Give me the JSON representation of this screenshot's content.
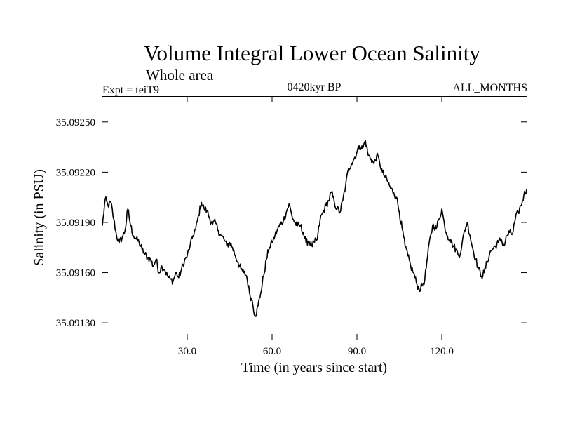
{
  "chart_data": {
    "type": "line",
    "title": "Volume Integral Lower Ocean Salinity",
    "subtitle": "Whole area",
    "experiment_label": "Expt = teiT9",
    "period_label": "0420kyr BP",
    "months_label": "ALL_MONTHS",
    "xlabel": "Time (in years since start)",
    "ylabel": "Salinity (in PSU)",
    "xlim": [
      0,
      150
    ],
    "ylim": [
      35.0912,
      35.09265
    ],
    "x_ticks": [
      30,
      60,
      90,
      120
    ],
    "x_tick_labels": [
      "30.0",
      "60.0",
      "90.0",
      "120.0"
    ],
    "y_ticks": [
      35.0913,
      35.0916,
      35.0919,
      35.0922,
      35.0925
    ],
    "y_tick_labels": [
      "35.09130",
      "35.09160",
      "35.09190",
      "35.09220",
      "35.09250"
    ],
    "grid": false,
    "series": [
      {
        "name": "Salinity",
        "color": "#000000",
        "x": [
          0,
          1,
          2,
          3,
          4,
          5,
          6,
          7,
          8,
          9,
          10,
          11,
          12,
          13,
          14,
          15,
          16,
          17,
          18,
          19,
          20,
          21,
          22,
          23,
          24,
          25,
          26,
          27,
          28,
          29,
          30,
          31,
          32,
          33,
          34,
          35,
          36,
          37,
          38,
          39,
          40,
          41,
          42,
          43,
          44,
          45,
          46,
          47,
          48,
          49,
          50,
          51,
          52,
          53,
          54,
          55,
          56,
          57,
          58,
          59,
          60,
          61,
          62,
          63,
          64,
          65,
          66,
          67,
          68,
          69,
          70,
          71,
          72,
          73,
          74,
          75,
          76,
          77,
          78,
          79,
          80,
          81,
          82,
          83,
          84,
          85,
          86,
          87,
          88,
          89,
          90,
          91,
          92,
          93,
          94,
          95,
          96,
          97,
          98,
          99,
          100,
          101,
          102,
          103,
          104,
          105,
          106,
          107,
          108,
          109,
          110,
          111,
          112,
          113,
          114,
          115,
          116,
          117,
          118,
          119,
          120,
          121,
          122,
          123,
          124,
          125,
          126,
          127,
          128,
          129,
          130,
          131,
          132,
          133,
          134,
          135,
          136,
          137,
          138,
          139,
          140,
          141,
          142,
          143,
          144,
          145,
          146,
          147,
          148,
          149,
          150
        ],
        "values": [
          35.09188,
          35.09204,
          35.092,
          35.09202,
          35.09192,
          35.09182,
          35.09178,
          35.09181,
          35.09185,
          35.09198,
          35.09188,
          35.09182,
          35.0918,
          35.09178,
          35.09174,
          35.09171,
          35.09169,
          35.09168,
          35.09164,
          35.09168,
          35.0916,
          35.09164,
          35.09162,
          35.09158,
          35.09156,
          35.09155,
          35.0916,
          35.09157,
          35.09162,
          35.09167,
          35.0917,
          35.09176,
          35.09182,
          35.09186,
          35.09194,
          35.09202,
          35.09198,
          35.09197,
          35.09192,
          35.09189,
          35.0919,
          35.09185,
          35.09182,
          35.0918,
          35.09176,
          35.09178,
          35.09175,
          35.0917,
          35.09166,
          35.09162,
          35.0916,
          35.09158,
          35.09148,
          35.09143,
          35.09134,
          35.0914,
          35.09148,
          35.09158,
          35.09168,
          35.09175,
          35.09178,
          35.09182,
          35.09186,
          35.09189,
          35.09191,
          35.09196,
          35.09201,
          35.09194,
          35.0919,
          35.09188,
          35.09188,
          35.09184,
          35.09178,
          35.09179,
          35.09176,
          35.09178,
          35.0918,
          35.09192,
          35.09196,
          35.092,
          35.09203,
          35.09208,
          35.09202,
          35.09198,
          35.09196,
          35.09203,
          35.09212,
          35.09222,
          35.09225,
          35.09228,
          35.09232,
          35.09236,
          35.09234,
          35.09239,
          35.0923,
          35.09228,
          35.09225,
          35.0923,
          35.09226,
          35.0922,
          35.09217,
          35.09214,
          35.0921,
          35.09208,
          35.09205,
          35.09196,
          35.09186,
          35.09176,
          35.0917,
          35.09164,
          35.0916,
          35.09154,
          35.0915,
          35.09152,
          35.09156,
          35.0917,
          35.09182,
          35.09189,
          35.09186,
          35.09192,
          35.09198,
          35.09188,
          35.09182,
          35.0918,
          35.09176,
          35.09174,
          35.0917,
          35.09175,
          35.09185,
          35.0919,
          35.09182,
          35.09174,
          35.09168,
          35.09162,
          35.09158,
          35.0916,
          35.09166,
          35.09172,
          35.09174,
          35.09176,
          35.09178,
          35.0918,
          35.09176,
          35.09182,
          35.09184,
          35.09183,
          35.09192,
          35.09196,
          35.092,
          35.09206,
          35.0921
        ]
      }
    ]
  }
}
